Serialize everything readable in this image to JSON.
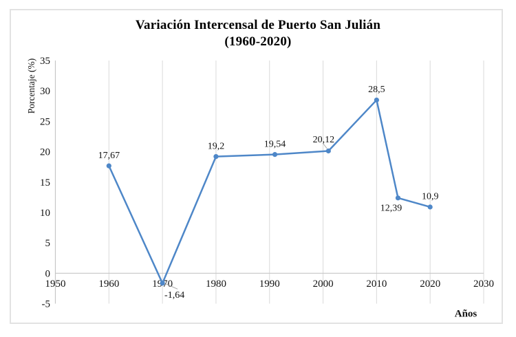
{
  "window": {
    "background": "#ffffff",
    "frame_border_color": "#e2e2e2"
  },
  "chart_data": {
    "type": "line",
    "title": "Variación Intercensal de Puerto San Julián",
    "subtitle": "(1960-2020)",
    "xlabel": "Años",
    "ylabel": "Porcentaje (%)",
    "xlim": [
      1950,
      2030
    ],
    "ylim": [
      -5,
      35
    ],
    "x_ticks": [
      1950,
      1960,
      1970,
      1980,
      1990,
      2000,
      2010,
      2020,
      2030
    ],
    "y_ticks": [
      -5,
      0,
      5,
      10,
      15,
      20,
      25,
      30,
      35
    ],
    "grid": "vertical-only",
    "legend": "none",
    "series": [
      {
        "color": "#4e87c8",
        "marker": "circle",
        "points": [
          {
            "x": 1960,
            "y": 17.67,
            "label": "17,67",
            "label_pos": "above"
          },
          {
            "x": 1970,
            "y": -1.64,
            "label": "-1,64",
            "label_pos": "below-right-leader"
          },
          {
            "x": 1980,
            "y": 19.2,
            "label": "19,2",
            "label_pos": "above"
          },
          {
            "x": 1991,
            "y": 19.54,
            "label": "19,54",
            "label_pos": "above"
          },
          {
            "x": 2001,
            "y": 20.12,
            "label": "20,12",
            "label_pos": "above-left-leader"
          },
          {
            "x": 2010,
            "y": 28.5,
            "label": "28,5",
            "label_pos": "above"
          },
          {
            "x": 2014,
            "y": 12.39,
            "label": "12,39",
            "label_pos": "below-left"
          },
          {
            "x": 2020,
            "y": 10.9,
            "label": "10,9",
            "label_pos": "above"
          }
        ]
      }
    ],
    "colors": {
      "gridline": "#d9d9d9",
      "axis_line": "#c6c6c6",
      "leader_line": "#a6a6a6",
      "label_text": "#111111"
    }
  }
}
